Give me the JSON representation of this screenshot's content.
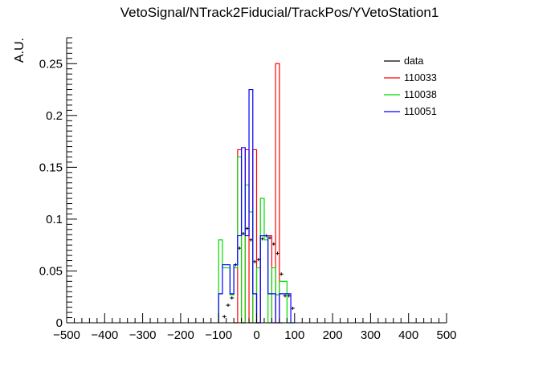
{
  "chart_data": {
    "type": "histogram",
    "title": "VetoSignal/NTrack2Fiducial/TrackPos/YVetoStation1",
    "xlabel": "",
    "ylabel": "A.U.",
    "xlim": [
      -500,
      500
    ],
    "ylim": [
      0,
      0.275
    ],
    "x_ticks": [
      "−500",
      "−400",
      "−300",
      "−200",
      "−100",
      "0",
      "100",
      "200",
      "300",
      "400",
      "500"
    ],
    "y_ticks": [
      "0",
      "0.05",
      "0.1",
      "0.15",
      "0.2",
      "0.25"
    ],
    "bin_width": 10,
    "legend_position": "top-right",
    "series": [
      {
        "name": "data",
        "style": "points",
        "color": "#000000",
        "points": [
          [
            -85,
            0.006
          ],
          [
            -75,
            0.017
          ],
          [
            -65,
            0.024
          ],
          [
            -55,
            0.056
          ],
          [
            -45,
            0.072
          ],
          [
            -35,
            0.086
          ],
          [
            -25,
            0.091
          ],
          [
            -15,
            0.08
          ],
          [
            -5,
            0.059
          ],
          [
            5,
            0.061
          ],
          [
            15,
            0.081
          ],
          [
            25,
            0.084
          ],
          [
            35,
            0.082
          ],
          [
            45,
            0.076
          ],
          [
            55,
            0.067
          ],
          [
            65,
            0.047
          ],
          [
            75,
            0.026
          ],
          [
            85,
            0.026
          ],
          [
            95,
            0.014
          ]
        ]
      },
      {
        "name": "110033",
        "style": "step",
        "color": "#ff0000",
        "bins": [
          [
            -60,
            -50,
            0.0
          ],
          [
            -50,
            -40,
            0.167
          ],
          [
            -40,
            -30,
            0.0
          ],
          [
            -30,
            -20,
            0.167
          ],
          [
            -20,
            -10,
            0.0
          ],
          [
            -10,
            0,
            0.167
          ],
          [
            0,
            10,
            0.0
          ],
          [
            10,
            20,
            0.084
          ],
          [
            20,
            30,
            0.084
          ],
          [
            30,
            40,
            0.084
          ],
          [
            40,
            50,
            0.0
          ],
          [
            50,
            60,
            0.25
          ],
          [
            60,
            70,
            0.0
          ]
        ]
      },
      {
        "name": "110038",
        "style": "step",
        "color": "#00dd00",
        "bins": [
          [
            -100,
            -90,
            0.08
          ],
          [
            -90,
            -80,
            0.053
          ],
          [
            -80,
            -70,
            0.053
          ],
          [
            -70,
            -60,
            0.027
          ],
          [
            -60,
            -50,
            0.053
          ],
          [
            -50,
            -40,
            0.16
          ],
          [
            -40,
            -30,
            0.0
          ],
          [
            -30,
            -20,
            0.133
          ],
          [
            -20,
            -10,
            0.107
          ],
          [
            -10,
            0,
            0.0
          ],
          [
            0,
            10,
            0.053
          ],
          [
            10,
            20,
            0.12
          ],
          [
            20,
            30,
            0.08
          ],
          [
            30,
            40,
            0.0
          ],
          [
            40,
            50,
            0.053
          ],
          [
            50,
            60,
            0.027
          ],
          [
            60,
            70,
            0.04
          ],
          [
            70,
            80,
            0.04
          ],
          [
            80,
            90,
            0.0
          ]
        ]
      },
      {
        "name": "110051",
        "style": "step",
        "color": "#0000ff",
        "bins": [
          [
            -100,
            -90,
            0.028
          ],
          [
            -90,
            -80,
            0.056
          ],
          [
            -80,
            -70,
            0.056
          ],
          [
            -70,
            -60,
            0.028
          ],
          [
            -60,
            -50,
            0.056
          ],
          [
            -50,
            -40,
            0.084
          ],
          [
            -40,
            -30,
            0.169
          ],
          [
            -30,
            -20,
            0.084
          ],
          [
            -20,
            -10,
            0.225
          ],
          [
            -10,
            0,
            0.028
          ],
          [
            0,
            10,
            0.0
          ],
          [
            10,
            20,
            0.084
          ],
          [
            20,
            30,
            0.084
          ],
          [
            30,
            40,
            0.028
          ],
          [
            40,
            50,
            0.028
          ],
          [
            50,
            60,
            0.0
          ],
          [
            60,
            70,
            0.028
          ],
          [
            70,
            80,
            0.028
          ],
          [
            80,
            90,
            0.028
          ],
          [
            90,
            100,
            0.0
          ]
        ]
      }
    ]
  }
}
